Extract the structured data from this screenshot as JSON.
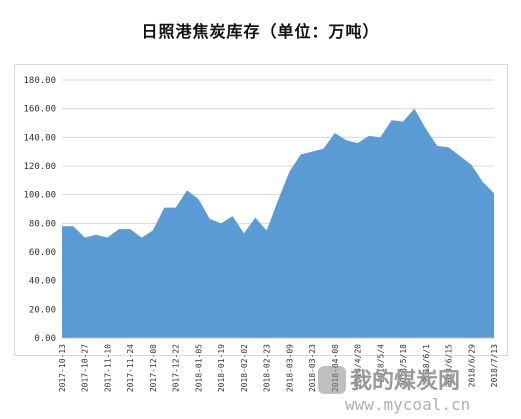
{
  "title": "日照港焦炭库存（单位：万吨）",
  "watermark": {
    "name": "我的煤炭网",
    "url": "www.mycoal.cn"
  },
  "chart_data": {
    "type": "area",
    "title": "日照港焦炭库存（单位：万吨）",
    "xlabel": "",
    "ylabel": "",
    "ylim": [
      0,
      180
    ],
    "yticks": [
      "0.00",
      "20.00",
      "40.00",
      "60.00",
      "80.00",
      "100.00",
      "120.00",
      "140.00",
      "160.00",
      "180.00"
    ],
    "grid": true,
    "legend": "none",
    "color": "#5b9bd5",
    "x_tick_labels": [
      "2017-10-13",
      "2017-10-27",
      "2017-11-10",
      "2017-11-24",
      "2017-12-08",
      "2017-12-22",
      "2018-01-05",
      "2018-01-19",
      "2018-02-02",
      "2018-02-23",
      "2018-03-09",
      "2018-03-23",
      "2018-04-08",
      "2018/4/20",
      "2018/5/4",
      "2018/5/18",
      "2018/6/1",
      "2018/6/15",
      "2018/6/29",
      "2018/7/13"
    ],
    "values": [
      78,
      78,
      70,
      72,
      70,
      76,
      76,
      70,
      75,
      91,
      91,
      103,
      97,
      83,
      80,
      85,
      73,
      84,
      75,
      96,
      116,
      128,
      130,
      132,
      143,
      138,
      136,
      141,
      140,
      152,
      151,
      160,
      146,
      134,
      133,
      127,
      121,
      109,
      101
    ]
  }
}
